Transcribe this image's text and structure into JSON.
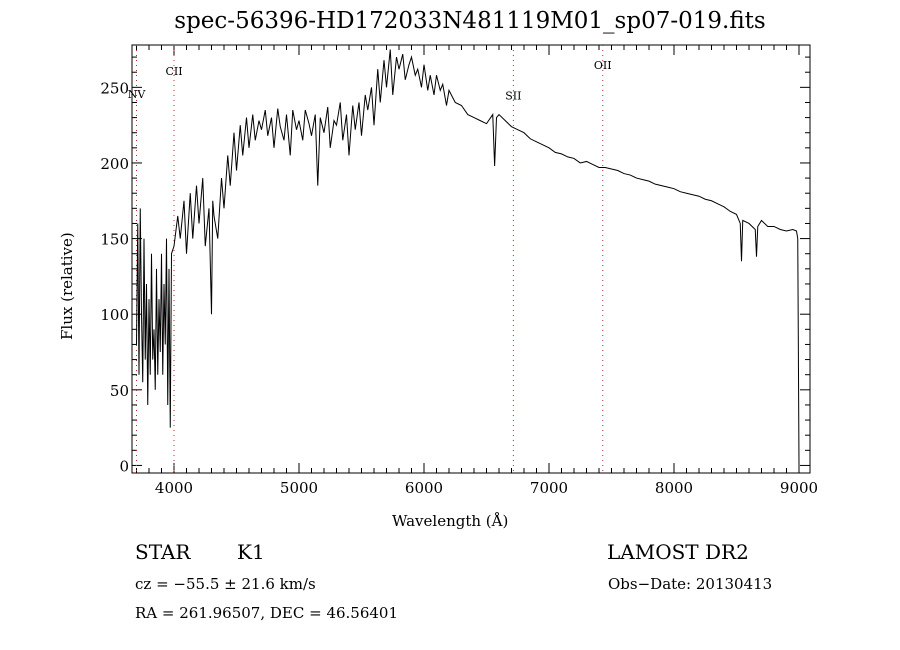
{
  "chart_data": {
    "type": "line",
    "title": "spec-56396-HD172033N481119M01_sp07-019.fits",
    "xlabel": "Wavelength (Å)",
    "ylabel": "Flux (relative)",
    "xlim": [
      3664,
      9088
    ],
    "ylim": [
      -5,
      278
    ],
    "xticks": [
      4000,
      5000,
      6000,
      7000,
      8000,
      9000
    ],
    "yticks": [
      0,
      50,
      100,
      150,
      200,
      250
    ],
    "grid": false,
    "lines": [
      {
        "label": "NV",
        "x": 3700
      },
      {
        "label": "CII",
        "x": 4000
      },
      {
        "label": "SII",
        "x": 6715
      },
      {
        "label": "OII",
        "x": 7430
      }
    ],
    "series": [
      {
        "name": "flux",
        "x": [
          3700,
          3710,
          3720,
          3730,
          3740,
          3750,
          3760,
          3770,
          3780,
          3790,
          3800,
          3810,
          3820,
          3830,
          3840,
          3850,
          3860,
          3870,
          3880,
          3890,
          3900,
          3910,
          3920,
          3930,
          3940,
          3950,
          3960,
          3970,
          3980,
          4000,
          4030,
          4050,
          4080,
          4100,
          4130,
          4150,
          4180,
          4200,
          4230,
          4250,
          4280,
          4300,
          4310,
          4320,
          4350,
          4380,
          4400,
          4430,
          4450,
          4480,
          4500,
          4530,
          4550,
          4580,
          4600,
          4630,
          4650,
          4680,
          4700,
          4730,
          4750,
          4780,
          4800,
          4830,
          4850,
          4880,
          4900,
          4930,
          4950,
          4980,
          5000,
          5030,
          5050,
          5080,
          5100,
          5130,
          5150,
          5170,
          5200,
          5230,
          5250,
          5280,
          5300,
          5330,
          5350,
          5380,
          5400,
          5430,
          5450,
          5480,
          5500,
          5530,
          5550,
          5580,
          5600,
          5630,
          5650,
          5680,
          5700,
          5730,
          5750,
          5780,
          5800,
          5830,
          5850,
          5880,
          5900,
          5930,
          5950,
          5980,
          6000,
          6030,
          6050,
          6080,
          6100,
          6130,
          6150,
          6180,
          6200,
          6250,
          6300,
          6350,
          6400,
          6450,
          6500,
          6550,
          6565,
          6580,
          6600,
          6650,
          6700,
          6750,
          6800,
          6850,
          6900,
          6950,
          7000,
          7050,
          7100,
          7150,
          7200,
          7250,
          7300,
          7350,
          7400,
          7450,
          7500,
          7550,
          7600,
          7650,
          7700,
          7750,
          7800,
          7850,
          7900,
          7950,
          8000,
          8050,
          8100,
          8150,
          8200,
          8250,
          8300,
          8350,
          8400,
          8450,
          8500,
          8530,
          8540,
          8550,
          8600,
          8650,
          8660,
          8670,
          8700,
          8750,
          8800,
          8850,
          8900,
          8950,
          8980,
          8990,
          9000
        ],
        "y": [
          80,
          160,
          60,
          170,
          100,
          55,
          150,
          70,
          120,
          40,
          110,
          60,
          140,
          70,
          90,
          50,
          130,
          60,
          110,
          75,
          140,
          60,
          120,
          80,
          150,
          40,
          130,
          25,
          140,
          145,
          165,
          150,
          175,
          140,
          180,
          150,
          185,
          160,
          190,
          145,
          170,
          100,
          175,
          165,
          150,
          190,
          170,
          205,
          185,
          220,
          195,
          225,
          205,
          230,
          210,
          232,
          215,
          228,
          222,
          235,
          218,
          230,
          210,
          236,
          224,
          215,
          232,
          205,
          235,
          222,
          228,
          215,
          235,
          226,
          218,
          232,
          185,
          230,
          220,
          237,
          210,
          228,
          225,
          240,
          215,
          232,
          205,
          238,
          222,
          240,
          218,
          245,
          235,
          250,
          225,
          262,
          240,
          268,
          250,
          275,
          245,
          270,
          262,
          272,
          255,
          265,
          270,
          258,
          262,
          250,
          265,
          248,
          258,
          245,
          258,
          248,
          252,
          238,
          248,
          240,
          238,
          232,
          230,
          228,
          226,
          232,
          198,
          230,
          232,
          228,
          224,
          222,
          220,
          216,
          214,
          212,
          210,
          207,
          206,
          204,
          203,
          200,
          201,
          199,
          197,
          197,
          196,
          195,
          193,
          192,
          190,
          189,
          188,
          186,
          185,
          184,
          183,
          181,
          180,
          179,
          178,
          176,
          175,
          173,
          171,
          168,
          166,
          160,
          135,
          162,
          160,
          156,
          138,
          158,
          162,
          158,
          158,
          156,
          155,
          156,
          155,
          150,
          0
        ]
      }
    ],
    "annotations": {
      "object_type": "STAR",
      "subclass": "K1",
      "survey": "LAMOST DR2",
      "cz": "cz = −55.5 ± 21.6 km/s",
      "obs_date": "Obs−Date: 20130413",
      "coords": "RA = 261.96507, DEC =  46.56401"
    }
  },
  "colors": {
    "line": "#000000",
    "marker_line": "#b03030"
  }
}
